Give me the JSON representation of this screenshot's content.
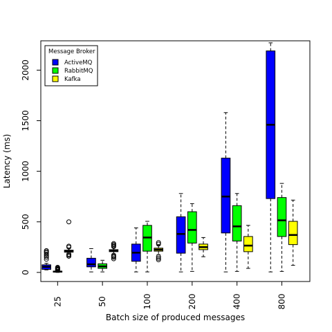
{
  "chart_data": {
    "type": "box",
    "xlabel": "Batch size of produced messages",
    "ylabel": "Latency (ms)",
    "categories": [
      "25",
      "50",
      "100",
      "200",
      "400",
      "800"
    ],
    "ylim": [
      -90,
      2290
    ],
    "yticks": [
      0,
      500,
      1000,
      1500,
      2000
    ],
    "legend": {
      "title": "Message Broker",
      "position": "top-left"
    },
    "series": [
      {
        "name": "ActiveMQ",
        "color": "#0000ff",
        "boxes": [
          {
            "min": 25,
            "q1": 30,
            "median": 55,
            "q3": 75,
            "max": 90,
            "outliers": [
              130,
              150,
              165,
              180,
              195,
              205,
              215
            ]
          },
          {
            "min": 5,
            "q1": 55,
            "median": 80,
            "q3": 140,
            "max": 235,
            "outliers": []
          },
          {
            "min": 5,
            "q1": 110,
            "median": 195,
            "q3": 280,
            "max": 440,
            "outliers": []
          },
          {
            "min": 5,
            "q1": 190,
            "median": 380,
            "q3": 550,
            "max": 780,
            "outliers": []
          },
          {
            "min": 5,
            "q1": 390,
            "median": 750,
            "q3": 1130,
            "max": 1580,
            "outliers": []
          },
          {
            "min": 5,
            "q1": 730,
            "median": 1460,
            "q3": 2190,
            "max": 2270,
            "outliers": []
          }
        ]
      },
      {
        "name": "RabbitMQ",
        "color": "#00ff00",
        "boxes": [
          {
            "min": 0,
            "q1": 3,
            "median": 8,
            "q3": 12,
            "max": 18,
            "outliers": [
              22,
              28,
              32,
              38,
              45,
              50
            ]
          },
          {
            "min": 5,
            "q1": 40,
            "median": 60,
            "q3": 85,
            "max": 120,
            "outliers": []
          },
          {
            "min": 5,
            "q1": 210,
            "median": 345,
            "q3": 465,
            "max": 505,
            "outliers": []
          },
          {
            "min": 10,
            "q1": 290,
            "median": 420,
            "q3": 600,
            "max": 680,
            "outliers": []
          },
          {
            "min": 10,
            "q1": 310,
            "median": 455,
            "q3": 660,
            "max": 780,
            "outliers": []
          },
          {
            "min": 10,
            "q1": 355,
            "median": 515,
            "q3": 740,
            "max": 880,
            "outliers": []
          }
        ]
      },
      {
        "name": "Kafka",
        "color": "#ffff00",
        "boxes": [
          {
            "min": 180,
            "q1": 200,
            "median": 210,
            "q3": 220,
            "max": 240,
            "outliers": [
              160,
              170,
              180,
              250,
              260,
              500
            ]
          },
          {
            "min": 180,
            "q1": 205,
            "median": 215,
            "q3": 225,
            "max": 245,
            "outliers": [
              135,
              150,
              160,
              170,
              255,
              265,
              275,
              285
            ]
          },
          {
            "min": 175,
            "q1": 210,
            "median": 225,
            "q3": 240,
            "max": 270,
            "outliers": [
              125,
              140,
              155,
              280,
              295
            ]
          },
          {
            "min": 155,
            "q1": 225,
            "median": 250,
            "q3": 280,
            "max": 345,
            "outliers": []
          },
          {
            "min": 40,
            "q1": 205,
            "median": 265,
            "q3": 355,
            "max": 465,
            "outliers": []
          },
          {
            "min": 70,
            "q1": 275,
            "median": 370,
            "q3": 505,
            "max": 715,
            "outliers": []
          }
        ]
      }
    ]
  }
}
